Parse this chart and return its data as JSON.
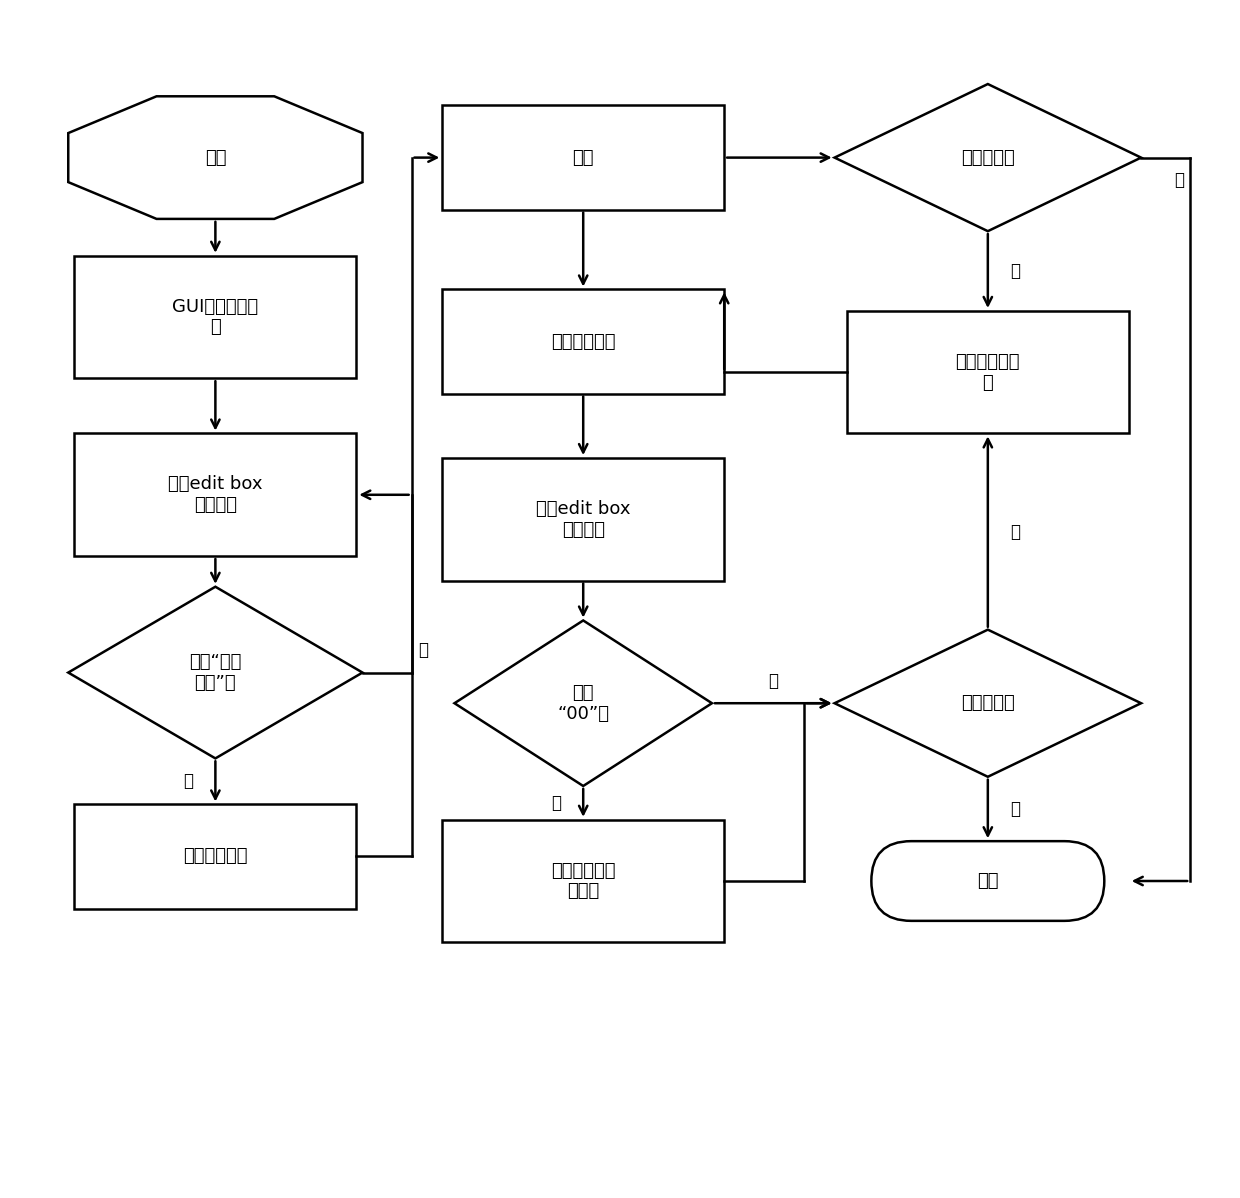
{
  "bg_color": "#ffffff",
  "node_fill": "#ffffff",
  "node_edge": "#000000",
  "font_size": 13,
  "label_start": "开始",
  "label_gui": "GUI各组件初始\n化",
  "label_read1": "读取edit box\n组件的値",
  "label_chk1": "等于“测试\n开始”？",
  "label_send_cfg": "发送配置指令",
  "label_delay": "延时",
  "label_send_test": "发送测试指令",
  "label_read2": "读取edit box\n组件的値",
  "label_chk00": "等于\n“00”？",
  "label_record": "记录上一条配\n置指令",
  "label_remain1": "剩下指令？",
  "label_send_next": "发送下一条指\n令",
  "label_remain2": "剩下指令？",
  "label_end": "结束",
  "label_yes": "是",
  "label_no": "否"
}
